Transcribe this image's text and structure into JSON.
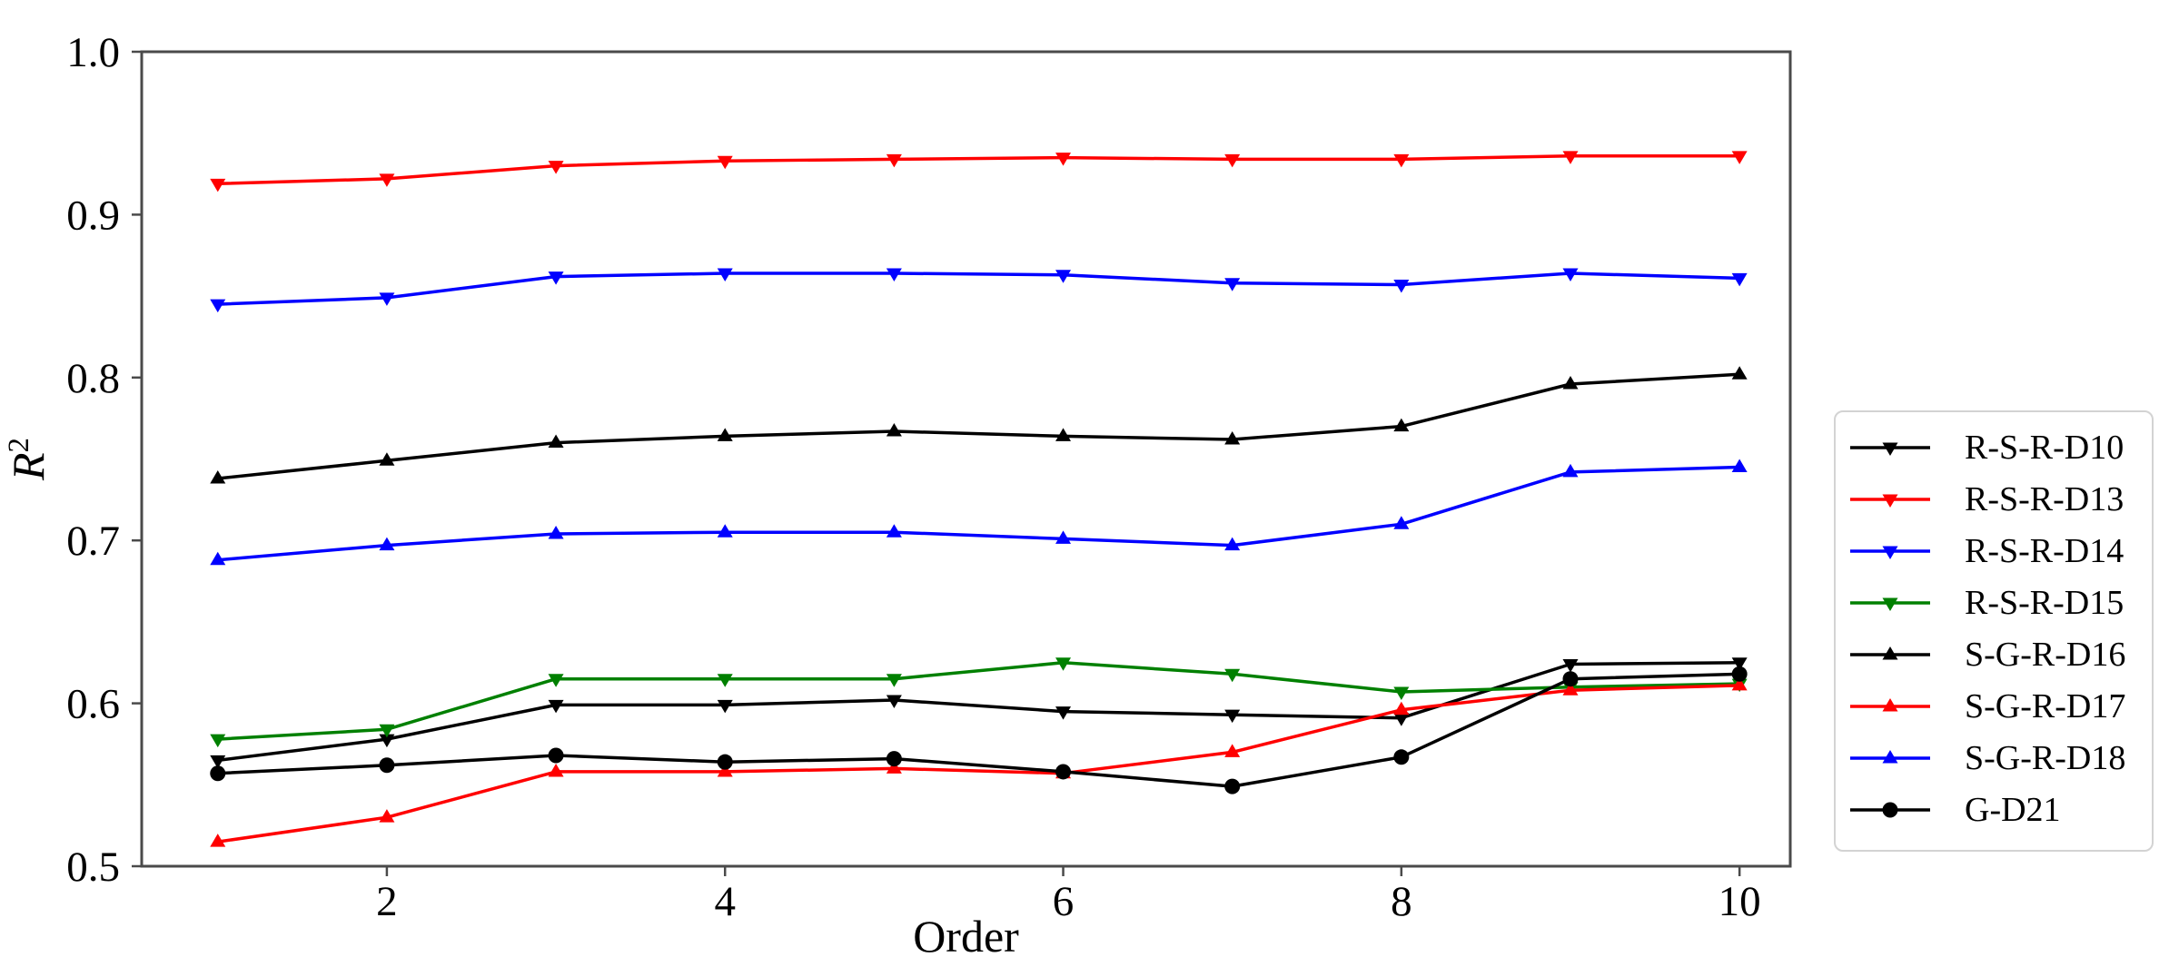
{
  "figure": {
    "background": "#ffffff",
    "axis_color": "#4a4a4a",
    "legend_border_color": "#d3d3d3"
  },
  "chart_data": {
    "type": "line",
    "title": "",
    "xlabel": "Order",
    "ylabel": "R",
    "ylabel_superscript": "2",
    "x": [
      1,
      2,
      3,
      4,
      5,
      6,
      7,
      8,
      9,
      10
    ],
    "xlim": [
      0.55,
      10.3
    ],
    "ylim": [
      0.5,
      1.0
    ],
    "xticks": {
      "values": [
        2,
        4,
        6,
        8,
        10
      ],
      "labels": [
        "2",
        "4",
        "6",
        "8",
        "10"
      ]
    },
    "yticks": {
      "values": [
        0.5,
        0.6,
        0.7,
        0.8,
        0.9,
        1.0
      ],
      "labels": [
        "0.5",
        "0.6",
        "0.7",
        "0.8",
        "0.9",
        "1.0"
      ]
    },
    "grid": false,
    "legend_position": "right-outside",
    "series": [
      {
        "name": "R-S-R-D10",
        "color": "#000000",
        "marker": "triangle-down",
        "values": [
          0.565,
          0.578,
          0.599,
          0.599,
          0.602,
          0.595,
          0.593,
          0.591,
          0.624,
          0.625
        ]
      },
      {
        "name": "R-S-R-D13",
        "color": "#ff0000",
        "marker": "triangle-down",
        "values": [
          0.919,
          0.922,
          0.93,
          0.933,
          0.934,
          0.935,
          0.934,
          0.934,
          0.936,
          0.936
        ]
      },
      {
        "name": "R-S-R-D14",
        "color": "#0000ff",
        "marker": "triangle-down",
        "values": [
          0.845,
          0.849,
          0.862,
          0.864,
          0.864,
          0.863,
          0.858,
          0.857,
          0.864,
          0.861
        ]
      },
      {
        "name": "R-S-R-D15",
        "color": "#008000",
        "marker": "triangle-down",
        "values": [
          0.578,
          0.584,
          0.615,
          0.615,
          0.615,
          0.625,
          0.618,
          0.607,
          0.61,
          0.612
        ]
      },
      {
        "name": "S-G-R-D16",
        "color": "#000000",
        "marker": "triangle-up",
        "values": [
          0.738,
          0.749,
          0.76,
          0.764,
          0.767,
          0.764,
          0.762,
          0.77,
          0.796,
          0.802
        ]
      },
      {
        "name": "S-G-R-D17",
        "color": "#ff0000",
        "marker": "triangle-up",
        "values": [
          0.515,
          0.53,
          0.558,
          0.558,
          0.56,
          0.557,
          0.57,
          0.596,
          0.608,
          0.611
        ]
      },
      {
        "name": "S-G-R-D18",
        "color": "#0000ff",
        "marker": "triangle-up",
        "values": [
          0.688,
          0.697,
          0.704,
          0.705,
          0.705,
          0.701,
          0.697,
          0.71,
          0.742,
          0.745
        ]
      },
      {
        "name": "G-D21",
        "color": "#000000",
        "marker": "circle",
        "values": [
          0.557,
          0.562,
          0.568,
          0.564,
          0.566,
          0.558,
          0.549,
          0.567,
          0.615,
          0.618
        ]
      }
    ]
  }
}
